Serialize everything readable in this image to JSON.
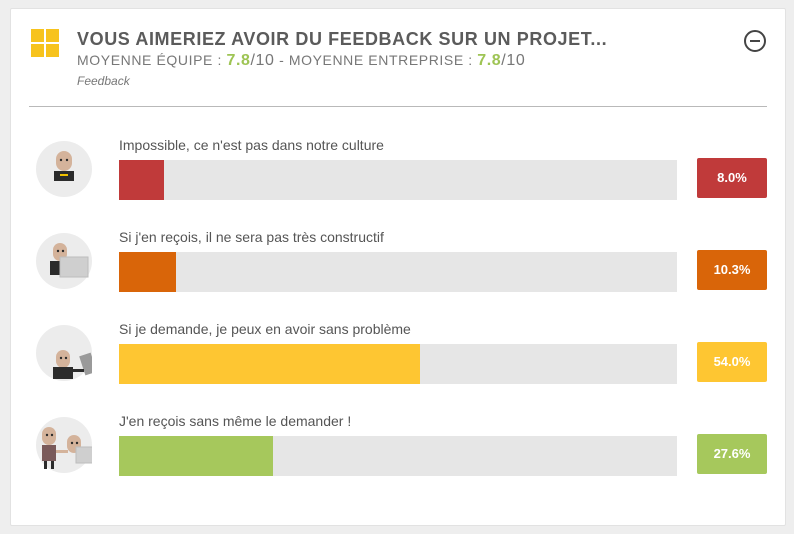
{
  "header": {
    "title": "VOUS AIMERIEZ AVOIR DU FEEDBACK SUR UN PROJET...",
    "team_label": "MOYENNE ÉQUIPE :",
    "team_score": "7.8",
    "team_scale": "/10",
    "separator": "-",
    "company_label": "MOYENNE ENTREPRISE :",
    "company_score": "7.8",
    "company_scale": "/10",
    "category": "Feedback"
  },
  "colors": {
    "logo": "#f7c31d",
    "accent_score": "#9ec454",
    "track": "#e6e6e6"
  },
  "chart_data": {
    "type": "bar",
    "orientation": "horizontal",
    "title": "VOUS AIMERIEZ AVOIR DU FEEDBACK SUR UN PROJET...",
    "categories": [
      "Impossible, ce n'est pas dans notre culture",
      "Si j'en reçois, il ne sera pas très constructif",
      "Si je demande, je peux en avoir sans problème",
      "J'en reçois sans même le demander !"
    ],
    "values": [
      8.0,
      10.3,
      54.0,
      27.6
    ],
    "value_labels": [
      "8.0%",
      "10.3%",
      "54.0%",
      "27.6%"
    ],
    "colors": [
      "#c03a3a",
      "#d96509",
      "#fec632",
      "#a6c85c"
    ],
    "avatars": [
      "person-laptop-icon",
      "person-screen-icon",
      "person-tablet-icon",
      "two-people-icon"
    ],
    "xlim": [
      0,
      100
    ],
    "grid": false,
    "legend": "none"
  }
}
